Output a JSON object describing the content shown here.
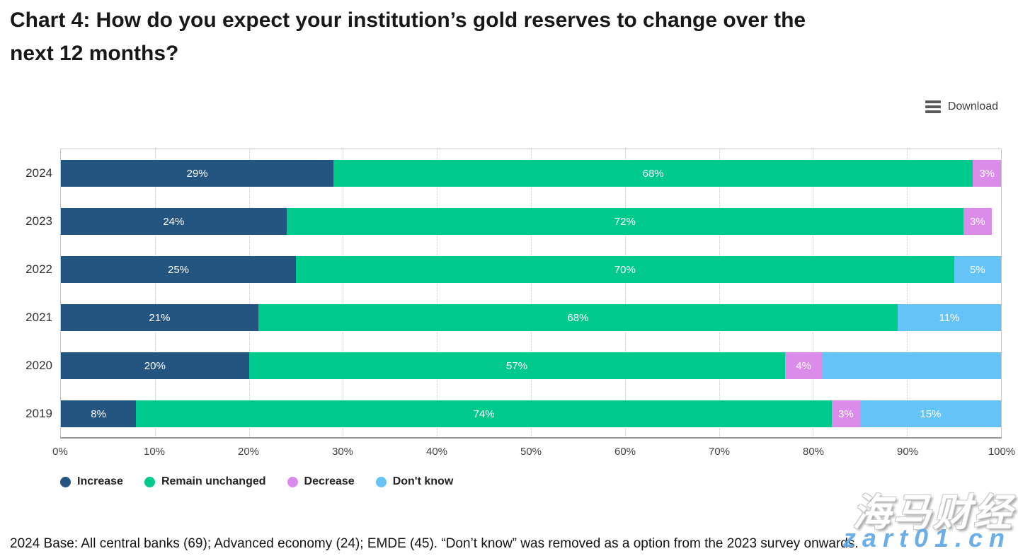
{
  "header": {
    "title": "Chart 4: How do you expect your institution’s gold reserves to change over the next 12 months?"
  },
  "toolbar": {
    "download_label": "Download",
    "menu_icon": "hamburger-menu-icon"
  },
  "chart_data": {
    "type": "bar",
    "orientation": "horizontal",
    "stacked": true,
    "title": "Chart 4: How do you expect your institution’s gold reserves to change over the next 12 months?",
    "categories": [
      "2024",
      "2023",
      "2022",
      "2021",
      "2020",
      "2019"
    ],
    "series": [
      {
        "name": "Increase",
        "color": "#245480",
        "values": [
          29,
          24,
          25,
          21,
          20,
          8
        ],
        "labels": [
          "29%",
          "24%",
          "25%",
          "21%",
          "20%",
          "8%"
        ]
      },
      {
        "name": "Remain unchanged",
        "color": "#00C98C",
        "values": [
          68,
          72,
          70,
          68,
          57,
          74
        ],
        "labels": [
          "68%",
          "72%",
          "70%",
          "68%",
          "57%",
          "74%"
        ]
      },
      {
        "name": "Decrease",
        "color": "#DB8CEB",
        "values": [
          3,
          3,
          0,
          0,
          4,
          3
        ],
        "labels": [
          "3%",
          "3%",
          "",
          "",
          "4%",
          "3%"
        ]
      },
      {
        "name": "Don't know",
        "color": "#65C3F8",
        "values": [
          0,
          0,
          5,
          11,
          19,
          15
        ],
        "labels": [
          "",
          "",
          "5%",
          "11%",
          "",
          "15%"
        ]
      }
    ],
    "x_ticks": [
      "0%",
      "10%",
      "20%",
      "30%",
      "40%",
      "50%",
      "60%",
      "70%",
      "80%",
      "90%",
      "100%"
    ],
    "xlim": [
      0,
      100
    ],
    "grid": "vertical-dotted",
    "legend_position": "bottom",
    "bar_label_color": "#ffffff"
  },
  "footnote": {
    "text": "2024 Base: All central banks (69); Advanced economy (24); EMDE (45). “Don’t know” was removed as a option from the 2023 survey onwards."
  },
  "watermark": {
    "line1": "海马财经",
    "line2": "zart01.cn"
  }
}
